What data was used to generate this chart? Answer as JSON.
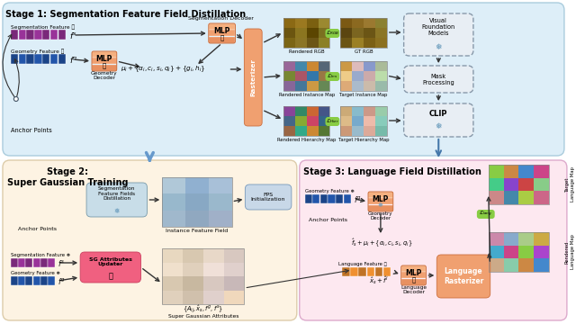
{
  "stage1_title": "Stage 1: Segmentation Feature Field Distillation",
  "stage2_title": "Stage 2:\nSuper Gaussian Training",
  "stage3_title": "Stage 3: Language Field Distillation",
  "bg_stage1": "#ddeef8",
  "bg_stage2": "#fdf3e3",
  "bg_stage3": "#fde8f0",
  "color_mlp": "#f0a070",
  "color_purple_bar": "#993399",
  "color_blue_bar": "#2255aa",
  "color_rasterizer": "#f0a070",
  "color_green_label": "#88cc44",
  "color_dashed_box_bg": "#e8eef4",
  "color_dashed_box_edge": "#8899aa",
  "color_sg_updater": "#f06080",
  "color_lang_rasterizer": "#f0a070",
  "color_fps": "#c8d8e8",
  "color_distill_box": "#c8dde8"
}
